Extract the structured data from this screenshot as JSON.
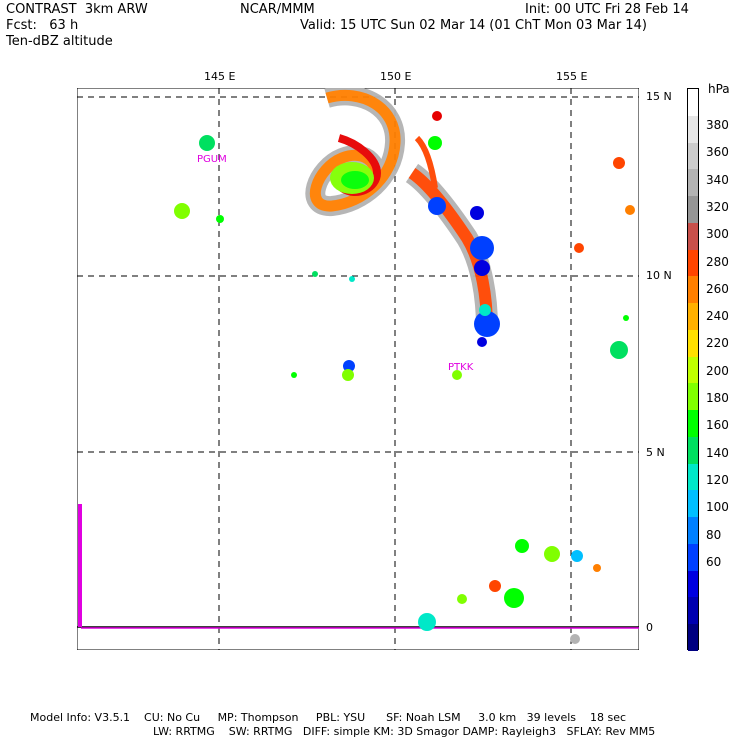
{
  "header": {
    "model": "CONTRAST  3km ARW",
    "center": "NCAR/MMM",
    "init": "Init: 00 UTC Fri 28 Feb 14",
    "fcst": "Fcst:   63 h",
    "valid": "Valid: 15 UTC Sun 02 Mar 14 (01 ChT Mon 03 Mar 14)",
    "field": "Ten-dBZ altitude"
  },
  "axes": {
    "lon_labels": [
      "145 E",
      "150 E",
      "155 E"
    ],
    "lat_labels": [
      "15 N",
      "10 N",
      "5 N"
    ],
    "zero_label": "0"
  },
  "stations": [
    "PGUM",
    "PTKK"
  ],
  "colorbar": {
    "unit": "hPa",
    "labels": [
      "380",
      "360",
      "340",
      "320",
      "300",
      "280",
      "260",
      "240",
      "220",
      "200",
      "180",
      "160",
      "140",
      "120",
      "100",
      "80",
      "60"
    ],
    "colors": [
      "#ffffff",
      "#e6e6e6",
      "#cccccc",
      "#b3b3b3",
      "#969696",
      "#c8504b",
      "#ff4500",
      "#ff7f00",
      "#ffb000",
      "#ffe000",
      "#c0ff00",
      "#80ff00",
      "#00ff00",
      "#00e060",
      "#00e8c8",
      "#00bfff",
      "#0080ff",
      "#0040ff",
      "#0000e0",
      "#0000b0",
      "#000080"
    ]
  },
  "footer": {
    "line1": "Model Info: V3.5.1    CU: No Cu     MP: Thompson     PBL: YSU      SF: Noah LSM     3.0 km   39 levels    18 sec",
    "line2": "LW: RRTMG    SW: RRTMG   DIFF: simple KM: 3D Smagor DAMP: Rayleigh3   SFLAY: Rev MM5"
  }
}
